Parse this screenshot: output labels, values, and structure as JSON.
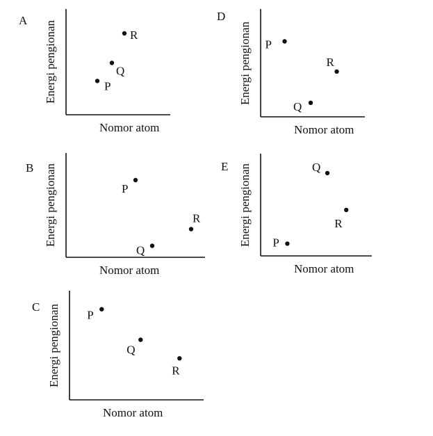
{
  "chart_data": [
    {
      "type": "scatter",
      "panel": "A",
      "xlabel": "Nomor atom",
      "ylabel": "Energi pengionan",
      "xlim": [
        0,
        10
      ],
      "ylim": [
        0,
        10
      ],
      "points": [
        {
          "label": "P",
          "x": 3.0,
          "y": 3.2
        },
        {
          "label": "Q",
          "x": 4.4,
          "y": 4.9
        },
        {
          "label": "R",
          "x": 5.6,
          "y": 7.7
        }
      ]
    },
    {
      "type": "scatter",
      "panel": "B",
      "xlabel": "Nomor atom",
      "ylabel": "Energi pengionan",
      "xlim": [
        0,
        10
      ],
      "ylim": [
        0,
        10
      ],
      "points": [
        {
          "label": "P",
          "x": 5.0,
          "y": 7.4
        },
        {
          "label": "Q",
          "x": 6.2,
          "y": 1.1
        },
        {
          "label": "R",
          "x": 9.0,
          "y": 2.7
        }
      ]
    },
    {
      "type": "scatter",
      "panel": "C",
      "xlabel": "Nomor atom",
      "ylabel": "Energi pengionan",
      "xlim": [
        0,
        10
      ],
      "ylim": [
        0,
        10
      ],
      "points": [
        {
          "label": "P",
          "x": 2.4,
          "y": 8.3
        },
        {
          "label": "Q",
          "x": 5.3,
          "y": 5.5
        },
        {
          "label": "R",
          "x": 8.2,
          "y": 3.8
        }
      ]
    },
    {
      "type": "scatter",
      "panel": "D",
      "xlabel": "Nomor atom",
      "ylabel": "Energi pengionan",
      "xlim": [
        0,
        10
      ],
      "ylim": [
        0,
        10
      ],
      "points": [
        {
          "label": "P",
          "x": 2.3,
          "y": 7.0
        },
        {
          "label": "Q",
          "x": 4.8,
          "y": 1.3
        },
        {
          "label": "R",
          "x": 7.3,
          "y": 4.2
        }
      ]
    },
    {
      "type": "scatter",
      "panel": "E",
      "xlabel": "Nomor atom",
      "ylabel": "Energi pengionan",
      "xlim": [
        0,
        10
      ],
      "ylim": [
        0,
        10
      ],
      "points": [
        {
          "label": "P",
          "x": 2.4,
          "y": 1.2
        },
        {
          "label": "Q",
          "x": 6.0,
          "y": 8.1
        },
        {
          "label": "R",
          "x": 7.7,
          "y": 4.5
        }
      ]
    }
  ]
}
